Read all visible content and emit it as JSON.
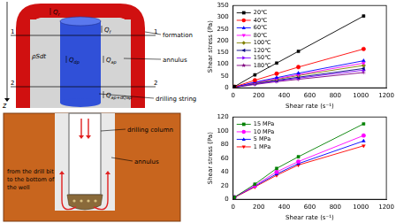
{
  "diagrams": [
    {
      "axis_label": "z",
      "section_labels": [
        "1",
        "2"
      ],
      "flows": [
        {
          "main": "Q",
          "sub": "r"
        },
        {
          "main": "Q",
          "sub": "f"
        },
        {
          "main": "Q",
          "sub": "ap"
        },
        {
          "main": "Q",
          "sub": "dp"
        },
        {
          "main": "Q",
          "sub": "ap+dQap"
        }
      ],
      "element": "ρSdt",
      "callouts": [
        "formation",
        "annulus",
        "drilling string"
      ]
    },
    {
      "callouts": [
        "drilling column",
        "annulus"
      ],
      "note": [
        "from the drill bit",
        "to the bottom of",
        "the well"
      ]
    }
  ],
  "chart_data": [
    {
      "type": "line",
      "x_label": "Shear rate (s⁻¹)",
      "y_label": "Shear stress (Pa)",
      "x": [
        5.11,
        10.22,
        170.3,
        340.6,
        510.9,
        1021.8
      ],
      "series": [
        {
          "name": "20℃",
          "color": "#000000",
          "marker": "square",
          "values": [
            3,
            5,
            55,
            105,
            155,
            305
          ]
        },
        {
          "name": "40℃",
          "color": "#ff0000",
          "marker": "circle",
          "values": [
            2,
            4,
            32,
            60,
            88,
            165
          ]
        },
        {
          "name": "60℃",
          "color": "#0000ff",
          "marker": "triangle",
          "values": [
            2,
            3,
            24,
            43,
            62,
            115
          ]
        },
        {
          "name": "80℃",
          "color": "#ff00ff",
          "marker": "triangle_down",
          "values": [
            2,
            3,
            22,
            39,
            56,
            105
          ]
        },
        {
          "name": "100℃",
          "color": "#808000",
          "marker": "diamond",
          "values": [
            1.5,
            2.5,
            20,
            36,
            52,
            95
          ]
        },
        {
          "name": "120℃",
          "color": "#000080",
          "marker": "triangle_left",
          "values": [
            1.5,
            2.5,
            18,
            32,
            45,
            82
          ]
        },
        {
          "name": "150℃",
          "color": "#8000ff",
          "marker": "triangle_right",
          "values": [
            1,
            2,
            16,
            29,
            41,
            75
          ]
        },
        {
          "name": "180℃",
          "color": "#800080",
          "marker": "star",
          "values": [
            1,
            2,
            14,
            26,
            36,
            65
          ]
        }
      ],
      "xlim": [
        0,
        1200
      ],
      "xticks": [
        0,
        200,
        400,
        600,
        800,
        1000,
        1200
      ],
      "ylim": [
        0,
        350
      ],
      "yticks": [
        0,
        50,
        100,
        150,
        200,
        250,
        300,
        350
      ],
      "grid": false,
      "legend": "upper left"
    },
    {
      "type": "line",
      "x_label": "Shear rate (s⁻¹)",
      "y_label": "Shear stress (Pa)",
      "x": [
        5.11,
        10.22,
        170.3,
        340.6,
        510.9,
        1021.8
      ],
      "series": [
        {
          "name": "15 MPa",
          "color": "#008000",
          "marker": "square",
          "values": [
            2,
            3,
            22,
            45,
            62,
            110
          ]
        },
        {
          "name": "10 MPa",
          "color": "#ff00ff",
          "marker": "circle",
          "values": [
            2,
            3,
            20,
            40,
            55,
            93
          ]
        },
        {
          "name": "5 MPa",
          "color": "#0000ff",
          "marker": "triangle",
          "values": [
            1.5,
            3,
            19,
            37,
            52,
            85
          ]
        },
        {
          "name": "1 MPa",
          "color": "#ff0000",
          "marker": "triangle_down",
          "values": [
            1.5,
            2.5,
            18,
            35,
            50,
            78
          ]
        }
      ],
      "xlim": [
        0,
        1200
      ],
      "xticks": [
        0,
        200,
        400,
        600,
        800,
        1000,
        1200
      ],
      "ylim": [
        0,
        120
      ],
      "yticks": [
        0,
        20,
        40,
        60,
        80,
        100,
        120
      ],
      "grid": false,
      "legend": "upper left"
    }
  ]
}
